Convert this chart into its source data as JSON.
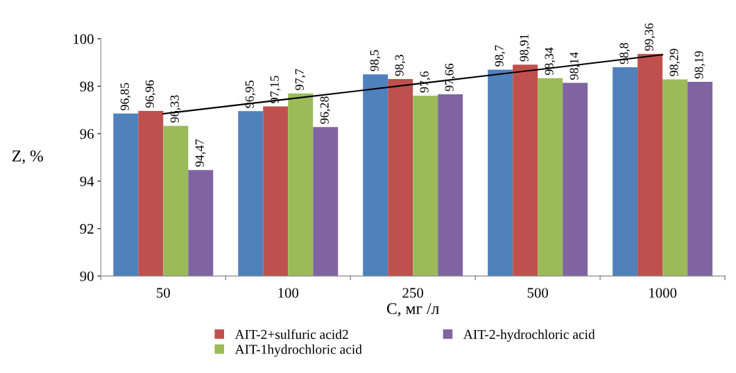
{
  "chart_data": {
    "type": "bar",
    "xlabel": "C, мг /л",
    "ylabel": "Z, %",
    "categories": [
      "50",
      "100",
      "250",
      "500",
      "1000"
    ],
    "series": [
      {
        "color": "#4f81bd",
        "values": [
          96.85,
          96.95,
          98.5,
          98.7,
          98.8
        ],
        "value_labels": [
          "96,85",
          "96,95",
          "98,5",
          "98,7",
          "98,8"
        ]
      },
      {
        "name": "AIT-2+sulfuric acid2",
        "color": "#c0504d",
        "values": [
          96.96,
          97.15,
          98.3,
          98.91,
          99.36
        ],
        "value_labels": [
          "96,96",
          "97,15",
          "98,3",
          "98,91",
          "99,36"
        ]
      },
      {
        "name": "AIT-1hydrochloric acid",
        "color": "#9bbb59",
        "values": [
          96.33,
          97.7,
          97.6,
          98.34,
          98.29
        ],
        "value_labels": [
          "96,33",
          "97,7",
          "97,6",
          "98,34",
          "98,29"
        ]
      },
      {
        "name": "AIT-2-hydrochloric acid",
        "color": "#8064a2",
        "values": [
          94.47,
          96.28,
          97.66,
          98.14,
          98.19
        ],
        "value_labels": [
          "94,47",
          "96,28",
          "97,66",
          "98,14",
          "98,19"
        ]
      },
      {
        "type": "line",
        "color": "#000000",
        "values": [
          96.84,
          97.46,
          98.08,
          98.7,
          99.33
        ]
      }
    ],
    "ylim": [
      90,
      100
    ],
    "yticks": [
      90,
      92,
      94,
      96,
      98,
      100
    ],
    "grid": false,
    "legend": "bottom"
  }
}
